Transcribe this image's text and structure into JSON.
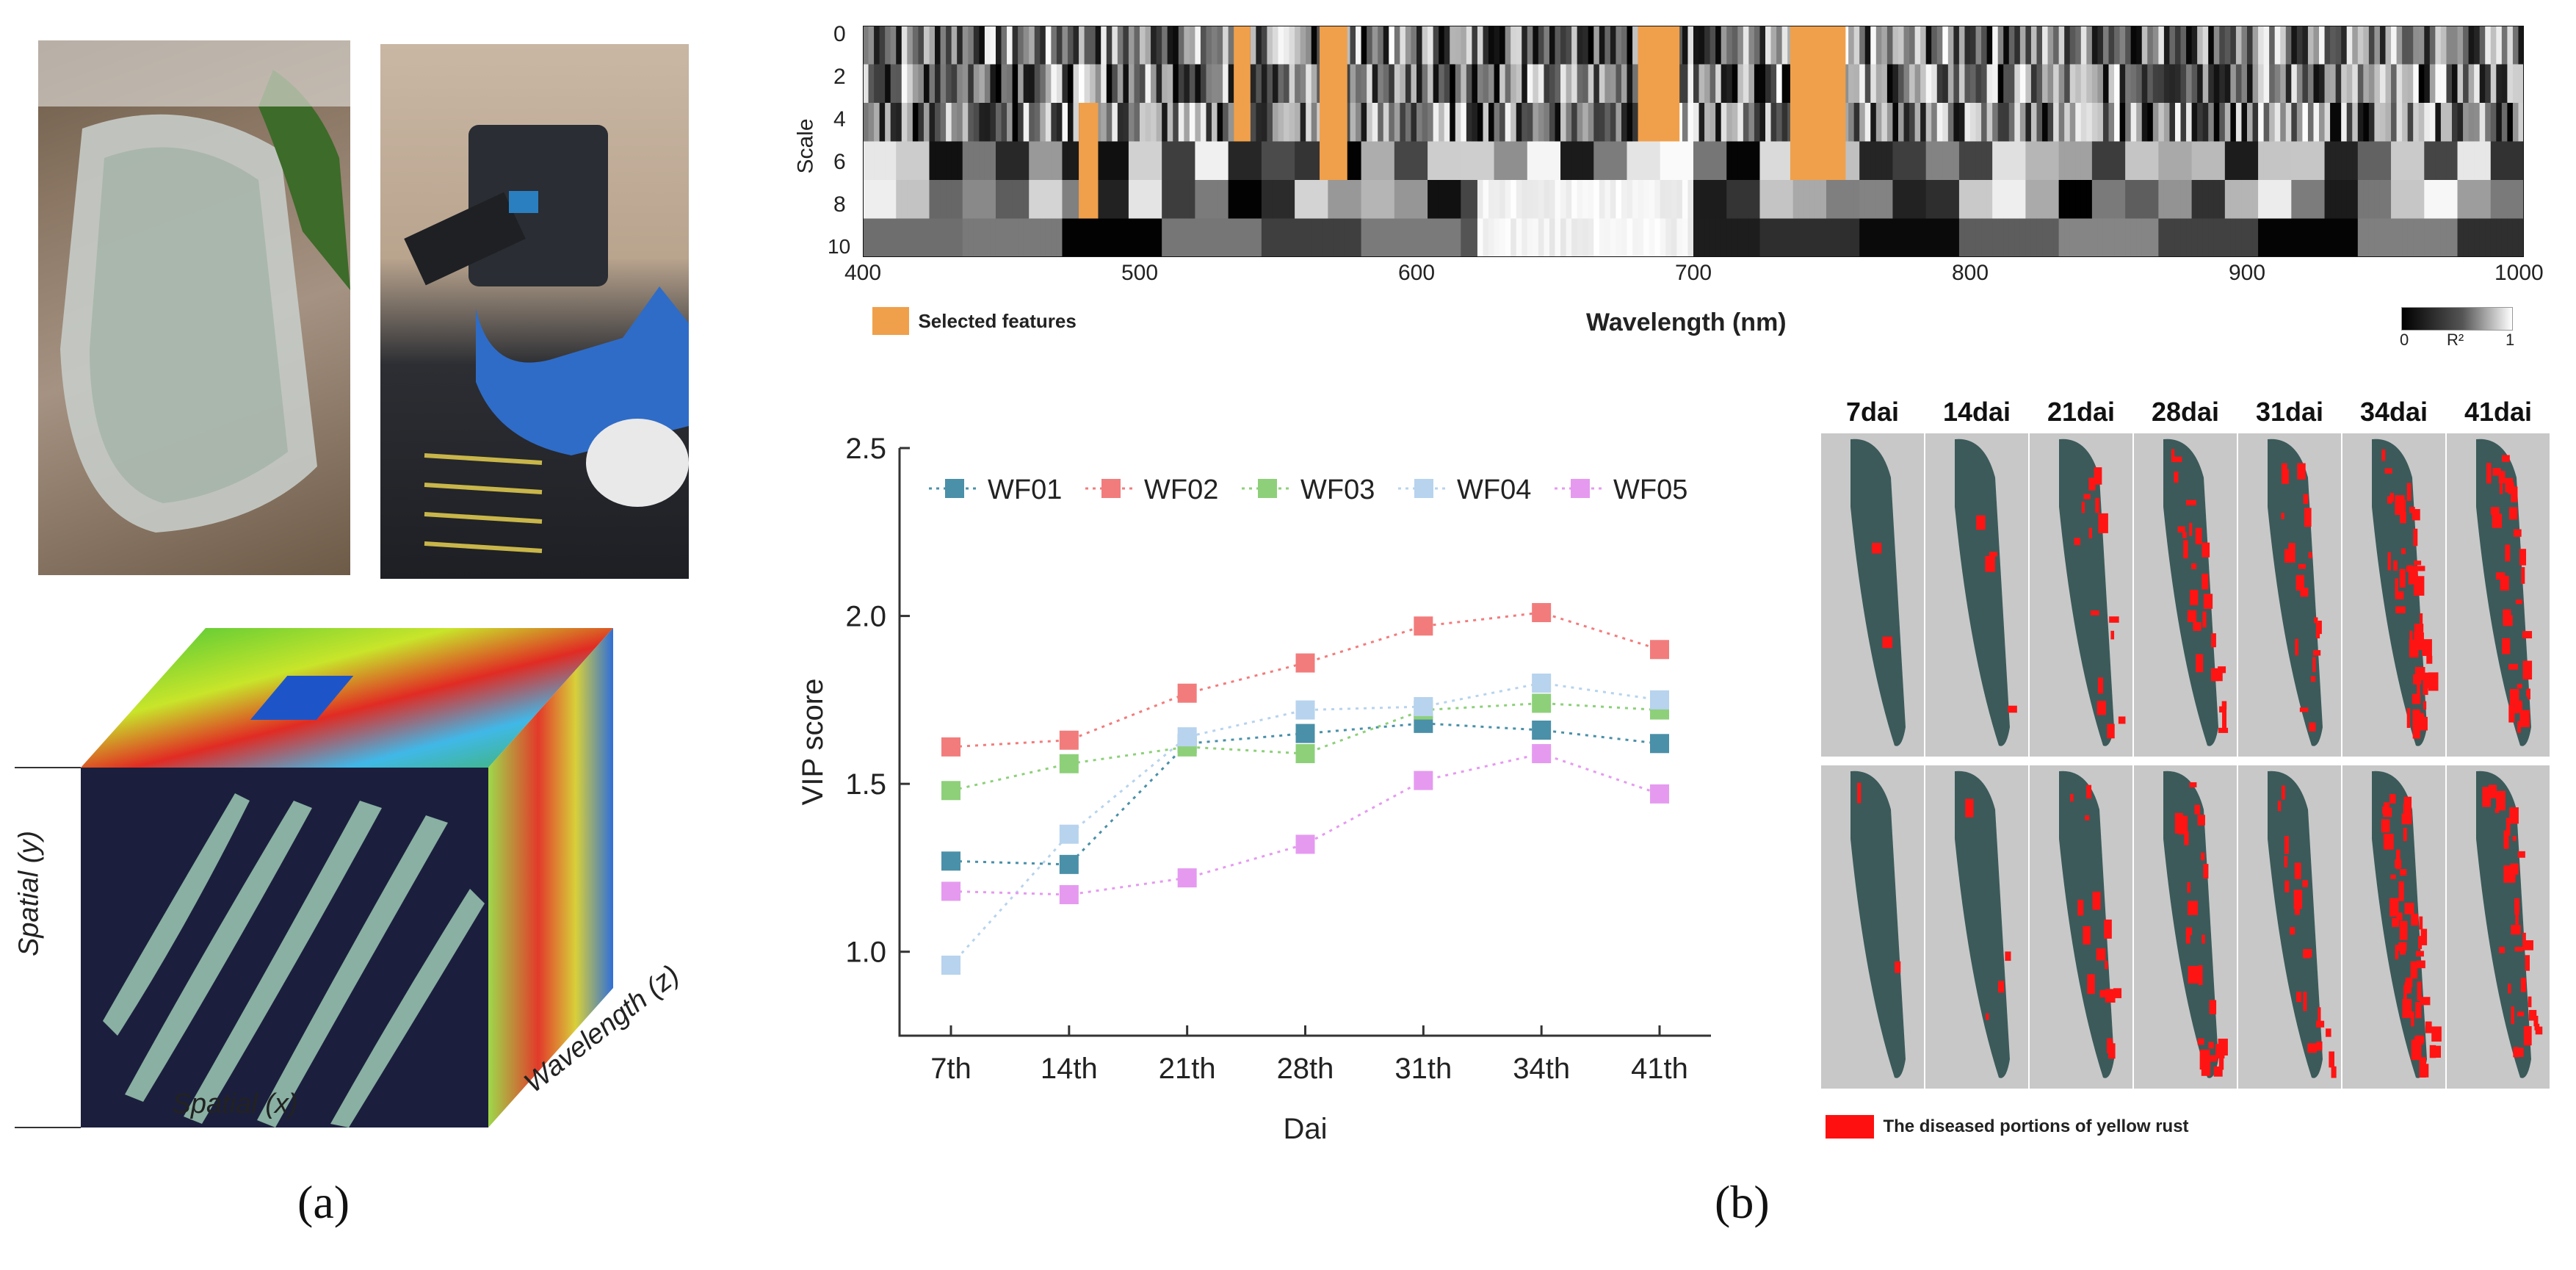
{
  "panel_labels": {
    "a": "(a)",
    "b": "(b)"
  },
  "cube": {
    "axis_y": "Spatial (y)",
    "axis_x": "Spatial (x)",
    "axis_z": "Wavelength (z)"
  },
  "heatmap": {
    "ylabel": "Scale",
    "xlabel": "Wavelength (nm)",
    "y_ticks": [
      "0",
      "2",
      "4",
      "6",
      "8",
      "10"
    ],
    "x_ticks": [
      "400",
      "500",
      "600",
      "700",
      "800",
      "900",
      "1000"
    ],
    "legend_selected": "Selected features",
    "colorbar": {
      "min": "0",
      "mid": "R²",
      "max": "1"
    },
    "selected_color": "#f0a04b"
  },
  "chart_data": {
    "type": "line",
    "title": "",
    "xlabel": "Dai",
    "ylabel": "VIP score",
    "categories": [
      "7th",
      "14th",
      "21th",
      "28th",
      "31th",
      "34th",
      "41th"
    ],
    "ylim": [
      0.75,
      2.5
    ],
    "yticks": [
      "1.0",
      "1.5",
      "2.0",
      "2.5"
    ],
    "series": [
      {
        "name": "WF01",
        "color": "#4a90a8",
        "values": [
          1.27,
          1.26,
          1.62,
          1.65,
          1.68,
          1.66,
          1.62
        ]
      },
      {
        "name": "WF02",
        "color": "#f27c7c",
        "values": [
          1.61,
          1.63,
          1.77,
          1.86,
          1.97,
          2.01,
          1.9
        ]
      },
      {
        "name": "WF03",
        "color": "#8ed07a",
        "values": [
          1.48,
          1.56,
          1.61,
          1.59,
          1.72,
          1.74,
          1.72
        ]
      },
      {
        "name": "WF04",
        "color": "#b7d3ee",
        "values": [
          0.96,
          1.35,
          1.64,
          1.72,
          1.73,
          1.8,
          1.75
        ]
      },
      {
        "name": "WF05",
        "color": "#e59af0",
        "values": [
          1.18,
          1.17,
          1.22,
          1.32,
          1.51,
          1.59,
          1.47
        ]
      }
    ]
  },
  "leaves": {
    "days": [
      "7dai",
      "14dai",
      "21dai",
      "28dai",
      "31dai",
      "34dai",
      "41dai"
    ],
    "legend": "The diseased portions of yellow rust"
  }
}
